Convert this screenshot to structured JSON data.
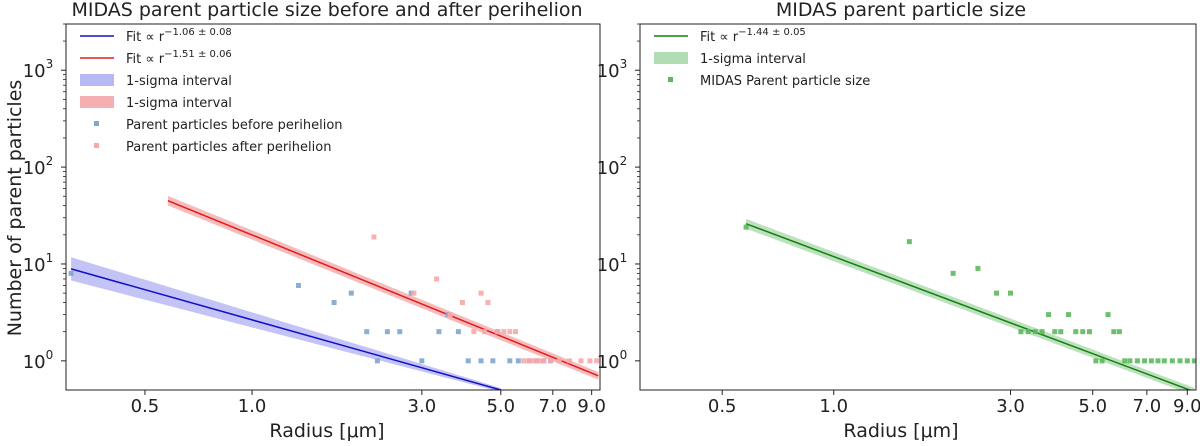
{
  "chart_data": [
    {
      "type": "scatter",
      "title": "MIDAS parent particle size before and after perihelion",
      "xlabel": "Radius [μm]",
      "ylabel": "Number of parent particles",
      "xscale": "log",
      "yscale": "log",
      "xlim": [
        0.3,
        9.5
      ],
      "ylim": [
        0.5,
        3000
      ],
      "xticks": [
        {
          "value": 0.5,
          "label": "0.5"
        },
        {
          "value": 1.0,
          "label": "1.0"
        },
        {
          "value": 3.0,
          "label": "3.0"
        },
        {
          "value": 5.0,
          "label": "5.0"
        },
        {
          "value": 7.0,
          "label": "7.0"
        },
        {
          "value": 9.0,
          "label": "9.0"
        }
      ],
      "yticks": [
        {
          "value": 1,
          "base": "10",
          "exp": "0"
        },
        {
          "value": 10,
          "base": "10",
          "exp": "1"
        },
        {
          "value": 100,
          "base": "10",
          "exp": "2"
        },
        {
          "value": 1000,
          "base": "10",
          "exp": "3"
        }
      ],
      "legend_position": "top-left",
      "grid": false,
      "fits": [
        {
          "label": "Fit  ∝ r",
          "exp": "−1.06 ± 0.08",
          "color": "#1010c8",
          "band_color": "#b8b8f4",
          "x": [
            0.31,
            5.0
          ],
          "y": [
            8.9,
            0.5
          ],
          "band": [
            0.12,
            0.02
          ]
        },
        {
          "label": "Fit  ∝ r",
          "exp": "−1.51 ± 0.06",
          "color": "#e41a1c",
          "band_color": "#f4b0b0",
          "x": [
            0.58,
            9.4
          ],
          "y": [
            45,
            0.7
          ],
          "band": [
            0.05,
            0.04
          ]
        }
      ],
      "band_labels": [
        {
          "label": "1-sigma interval",
          "color": "#b8b8f4"
        },
        {
          "label": "1-sigma interval",
          "color": "#f4b0b0"
        }
      ],
      "series": [
        {
          "name": "Parent particles before perihelion",
          "color": "#7fa6cc",
          "points": [
            [
              0.31,
              8
            ],
            [
              1.35,
              6
            ],
            [
              1.7,
              4
            ],
            [
              1.9,
              5
            ],
            [
              2.1,
              2
            ],
            [
              2.25,
              1
            ],
            [
              2.4,
              2
            ],
            [
              2.6,
              2
            ],
            [
              2.8,
              5
            ],
            [
              3.0,
              1
            ],
            [
              3.35,
              2
            ],
            [
              3.55,
              3
            ],
            [
              3.8,
              2
            ],
            [
              4.05,
              1
            ],
            [
              4.4,
              1
            ],
            [
              4.75,
              1
            ],
            [
              4.9,
              2
            ],
            [
              5.3,
              1
            ],
            [
              5.6,
              1
            ],
            [
              6.0,
              1
            ],
            [
              6.3,
              1
            ],
            [
              6.6,
              1
            ],
            [
              6.9,
              1
            ]
          ]
        },
        {
          "name": "Parent particles after perihelion",
          "color": "#f7a8a8",
          "points": [
            [
              2.2,
              19
            ],
            [
              2.85,
              5
            ],
            [
              3.3,
              7
            ],
            [
              3.6,
              3
            ],
            [
              3.9,
              4
            ],
            [
              4.2,
              2
            ],
            [
              4.4,
              5
            ],
            [
              4.5,
              2
            ],
            [
              4.6,
              4
            ],
            [
              4.9,
              2
            ],
            [
              5.1,
              2
            ],
            [
              5.3,
              2
            ],
            [
              5.5,
              2
            ],
            [
              5.8,
              1
            ],
            [
              6.0,
              1
            ],
            [
              6.2,
              1
            ],
            [
              6.4,
              1
            ],
            [
              6.6,
              1
            ],
            [
              6.9,
              1
            ],
            [
              7.3,
              1
            ],
            [
              7.8,
              1
            ],
            [
              8.4,
              1
            ],
            [
              8.9,
              1
            ],
            [
              9.3,
              1
            ]
          ]
        }
      ]
    },
    {
      "type": "scatter",
      "title": "MIDAS parent particle size",
      "xlabel": "Radius [μm]",
      "ylabel": "",
      "xscale": "log",
      "yscale": "log",
      "xlim": [
        0.3,
        9.5
      ],
      "ylim": [
        0.5,
        3000
      ],
      "xticks": [
        {
          "value": 0.5,
          "label": "0.5"
        },
        {
          "value": 1.0,
          "label": "1.0"
        },
        {
          "value": 3.0,
          "label": "3.0"
        },
        {
          "value": 5.0,
          "label": "5.0"
        },
        {
          "value": 7.0,
          "label": "7.0"
        },
        {
          "value": 9.0,
          "label": "9.0"
        }
      ],
      "yticks": [
        {
          "value": 1,
          "base": "10",
          "exp": "0"
        },
        {
          "value": 10,
          "base": "10",
          "exp": "1"
        },
        {
          "value": 100,
          "base": "10",
          "exp": "2"
        },
        {
          "value": 1000,
          "base": "10",
          "exp": "3"
        }
      ],
      "legend_position": "top-left",
      "grid": false,
      "fits": [
        {
          "label": "Fit  ∝ r",
          "exp": "−1.44 ± 0.05",
          "color": "#108010",
          "band_color": "#b2dcb2",
          "x": [
            0.58,
            9.4
          ],
          "y": [
            26,
            0.48
          ],
          "band": [
            0.05,
            0.04
          ]
        }
      ],
      "band_labels": [
        {
          "label": "1-sigma interval",
          "color": "#b2dcb2"
        }
      ],
      "series": [
        {
          "name": "MIDAS Parent particle size",
          "color": "#5cb85c",
          "points": [
            [
              0.58,
              24
            ],
            [
              1.6,
              17
            ],
            [
              2.1,
              8
            ],
            [
              2.45,
              9
            ],
            [
              2.75,
              5
            ],
            [
              3.0,
              5
            ],
            [
              3.2,
              2
            ],
            [
              3.35,
              2
            ],
            [
              3.5,
              2
            ],
            [
              3.65,
              2
            ],
            [
              3.8,
              3
            ],
            [
              3.95,
              2
            ],
            [
              4.1,
              2
            ],
            [
              4.3,
              3
            ],
            [
              4.5,
              2
            ],
            [
              4.7,
              2
            ],
            [
              4.9,
              2
            ],
            [
              5.1,
              1
            ],
            [
              5.3,
              1
            ],
            [
              5.5,
              3
            ],
            [
              5.7,
              2
            ],
            [
              5.9,
              2
            ],
            [
              6.1,
              1
            ],
            [
              6.3,
              1
            ],
            [
              6.6,
              1
            ],
            [
              6.9,
              1
            ],
            [
              7.2,
              1
            ],
            [
              7.5,
              1
            ],
            [
              7.8,
              1
            ],
            [
              8.2,
              1
            ],
            [
              8.6,
              1
            ],
            [
              9.0,
              1
            ],
            [
              9.4,
              1
            ]
          ]
        }
      ]
    }
  ]
}
